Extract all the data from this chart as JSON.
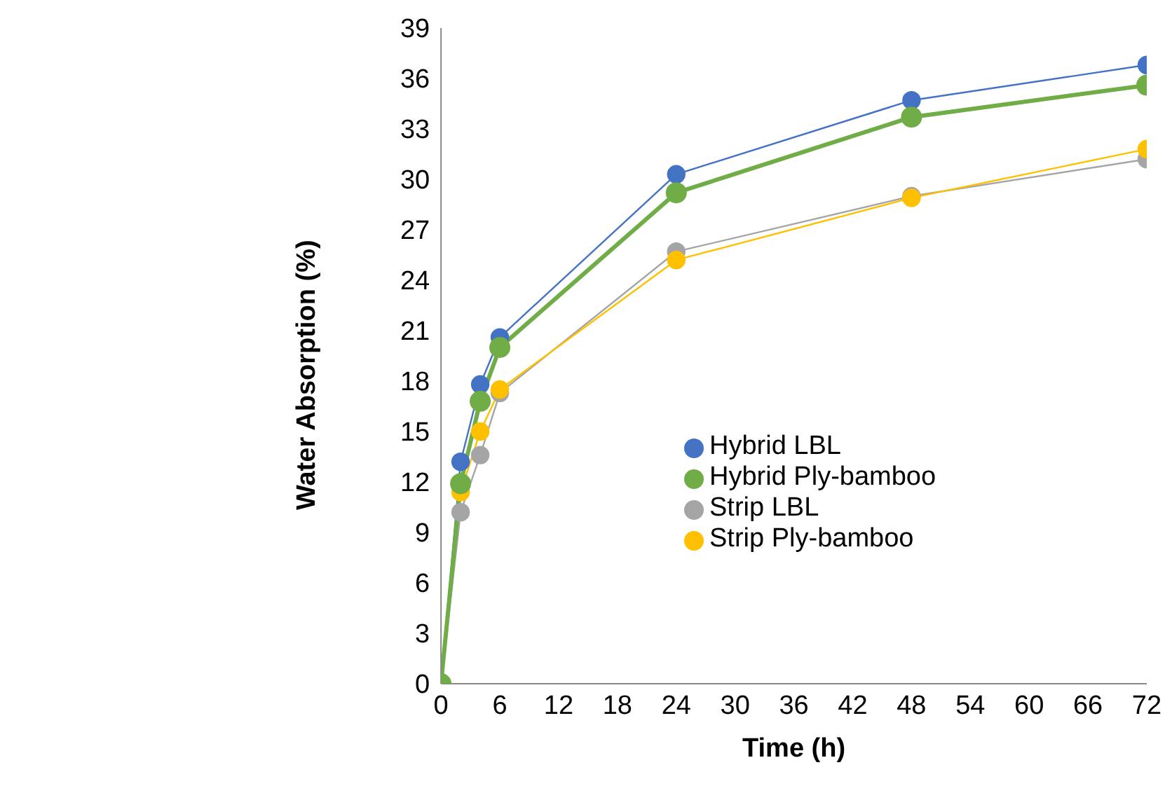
{
  "chart_data": {
    "type": "line",
    "xlabel": "Time (h)",
    "ylabel": "Water Absorption  (%)",
    "x": [
      0,
      2,
      4,
      6,
      24,
      48,
      72
    ],
    "xlim": [
      0,
      72
    ],
    "xticks": [
      0,
      6,
      12,
      18,
      24,
      30,
      36,
      42,
      48,
      54,
      60,
      66,
      72
    ],
    "ylim": [
      0,
      39
    ],
    "yticks": [
      0,
      3,
      6,
      9,
      12,
      15,
      18,
      21,
      24,
      27,
      30,
      33,
      36,
      39
    ],
    "marker": "circle",
    "legend": "right",
    "series": [
      {
        "name": "Strip LBL",
        "color": "#a5a5a5",
        "values": [
          0,
          10.2,
          13.6,
          17.3,
          25.7,
          29.0,
          31.2
        ]
      },
      {
        "name": "Strip Ply-bamboo",
        "color": "#ffc000",
        "values": [
          0,
          11.4,
          15.0,
          17.5,
          25.2,
          28.9,
          31.8
        ]
      },
      {
        "name": "Hybrid LBL",
        "color": "#4472c4",
        "values": [
          0,
          13.2,
          17.8,
          20.6,
          30.3,
          34.7,
          36.8
        ]
      },
      {
        "name": "Hybrid Ply-bamboo",
        "color": "#70ad47",
        "values": [
          0,
          11.9,
          16.8,
          20.0,
          29.2,
          33.7,
          35.6
        ]
      }
    ]
  }
}
